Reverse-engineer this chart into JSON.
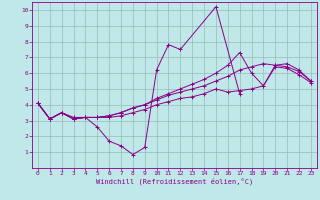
{
  "xlabel": "Windchill (Refroidissement éolien,°C)",
  "xlim": [
    -0.5,
    23.5
  ],
  "ylim": [
    0,
    10.5
  ],
  "xticks": [
    0,
    1,
    2,
    3,
    4,
    5,
    6,
    7,
    8,
    9,
    10,
    11,
    12,
    13,
    14,
    15,
    16,
    17,
    18,
    19,
    20,
    21,
    22,
    23
  ],
  "yticks": [
    1,
    2,
    3,
    4,
    5,
    6,
    7,
    8,
    9,
    10
  ],
  "bg_color": "#c0e8e8",
  "line_color": "#880088",
  "grid_color": "#99bbbb",
  "lines": [
    [
      4.1,
      3.1,
      3.5,
      3.2,
      3.2,
      2.6,
      1.7,
      1.4,
      0.85,
      1.3,
      6.2,
      7.8,
      7.5,
      null,
      null,
      10.2,
      null,
      4.7,
      null,
      null,
      null,
      null,
      null,
      null
    ],
    [
      4.1,
      3.1,
      3.5,
      3.1,
      3.2,
      3.2,
      3.2,
      3.3,
      3.5,
      3.7,
      4.0,
      4.2,
      4.4,
      4.5,
      4.7,
      5.0,
      4.8,
      4.9,
      5.0,
      5.2,
      6.4,
      6.3,
      5.9,
      5.4
    ],
    [
      4.1,
      3.1,
      3.5,
      3.1,
      3.2,
      3.2,
      3.3,
      3.5,
      3.8,
      4.0,
      4.3,
      4.6,
      4.8,
      5.0,
      5.2,
      5.5,
      5.8,
      6.2,
      6.4,
      6.6,
      6.5,
      6.4,
      6.1,
      5.5
    ],
    [
      4.1,
      3.1,
      3.5,
      3.1,
      3.2,
      3.2,
      3.3,
      3.5,
      3.8,
      4.0,
      4.4,
      4.7,
      5.0,
      5.3,
      5.6,
      6.0,
      6.5,
      7.3,
      6.0,
      5.2,
      6.5,
      6.6,
      6.2,
      5.5
    ]
  ]
}
